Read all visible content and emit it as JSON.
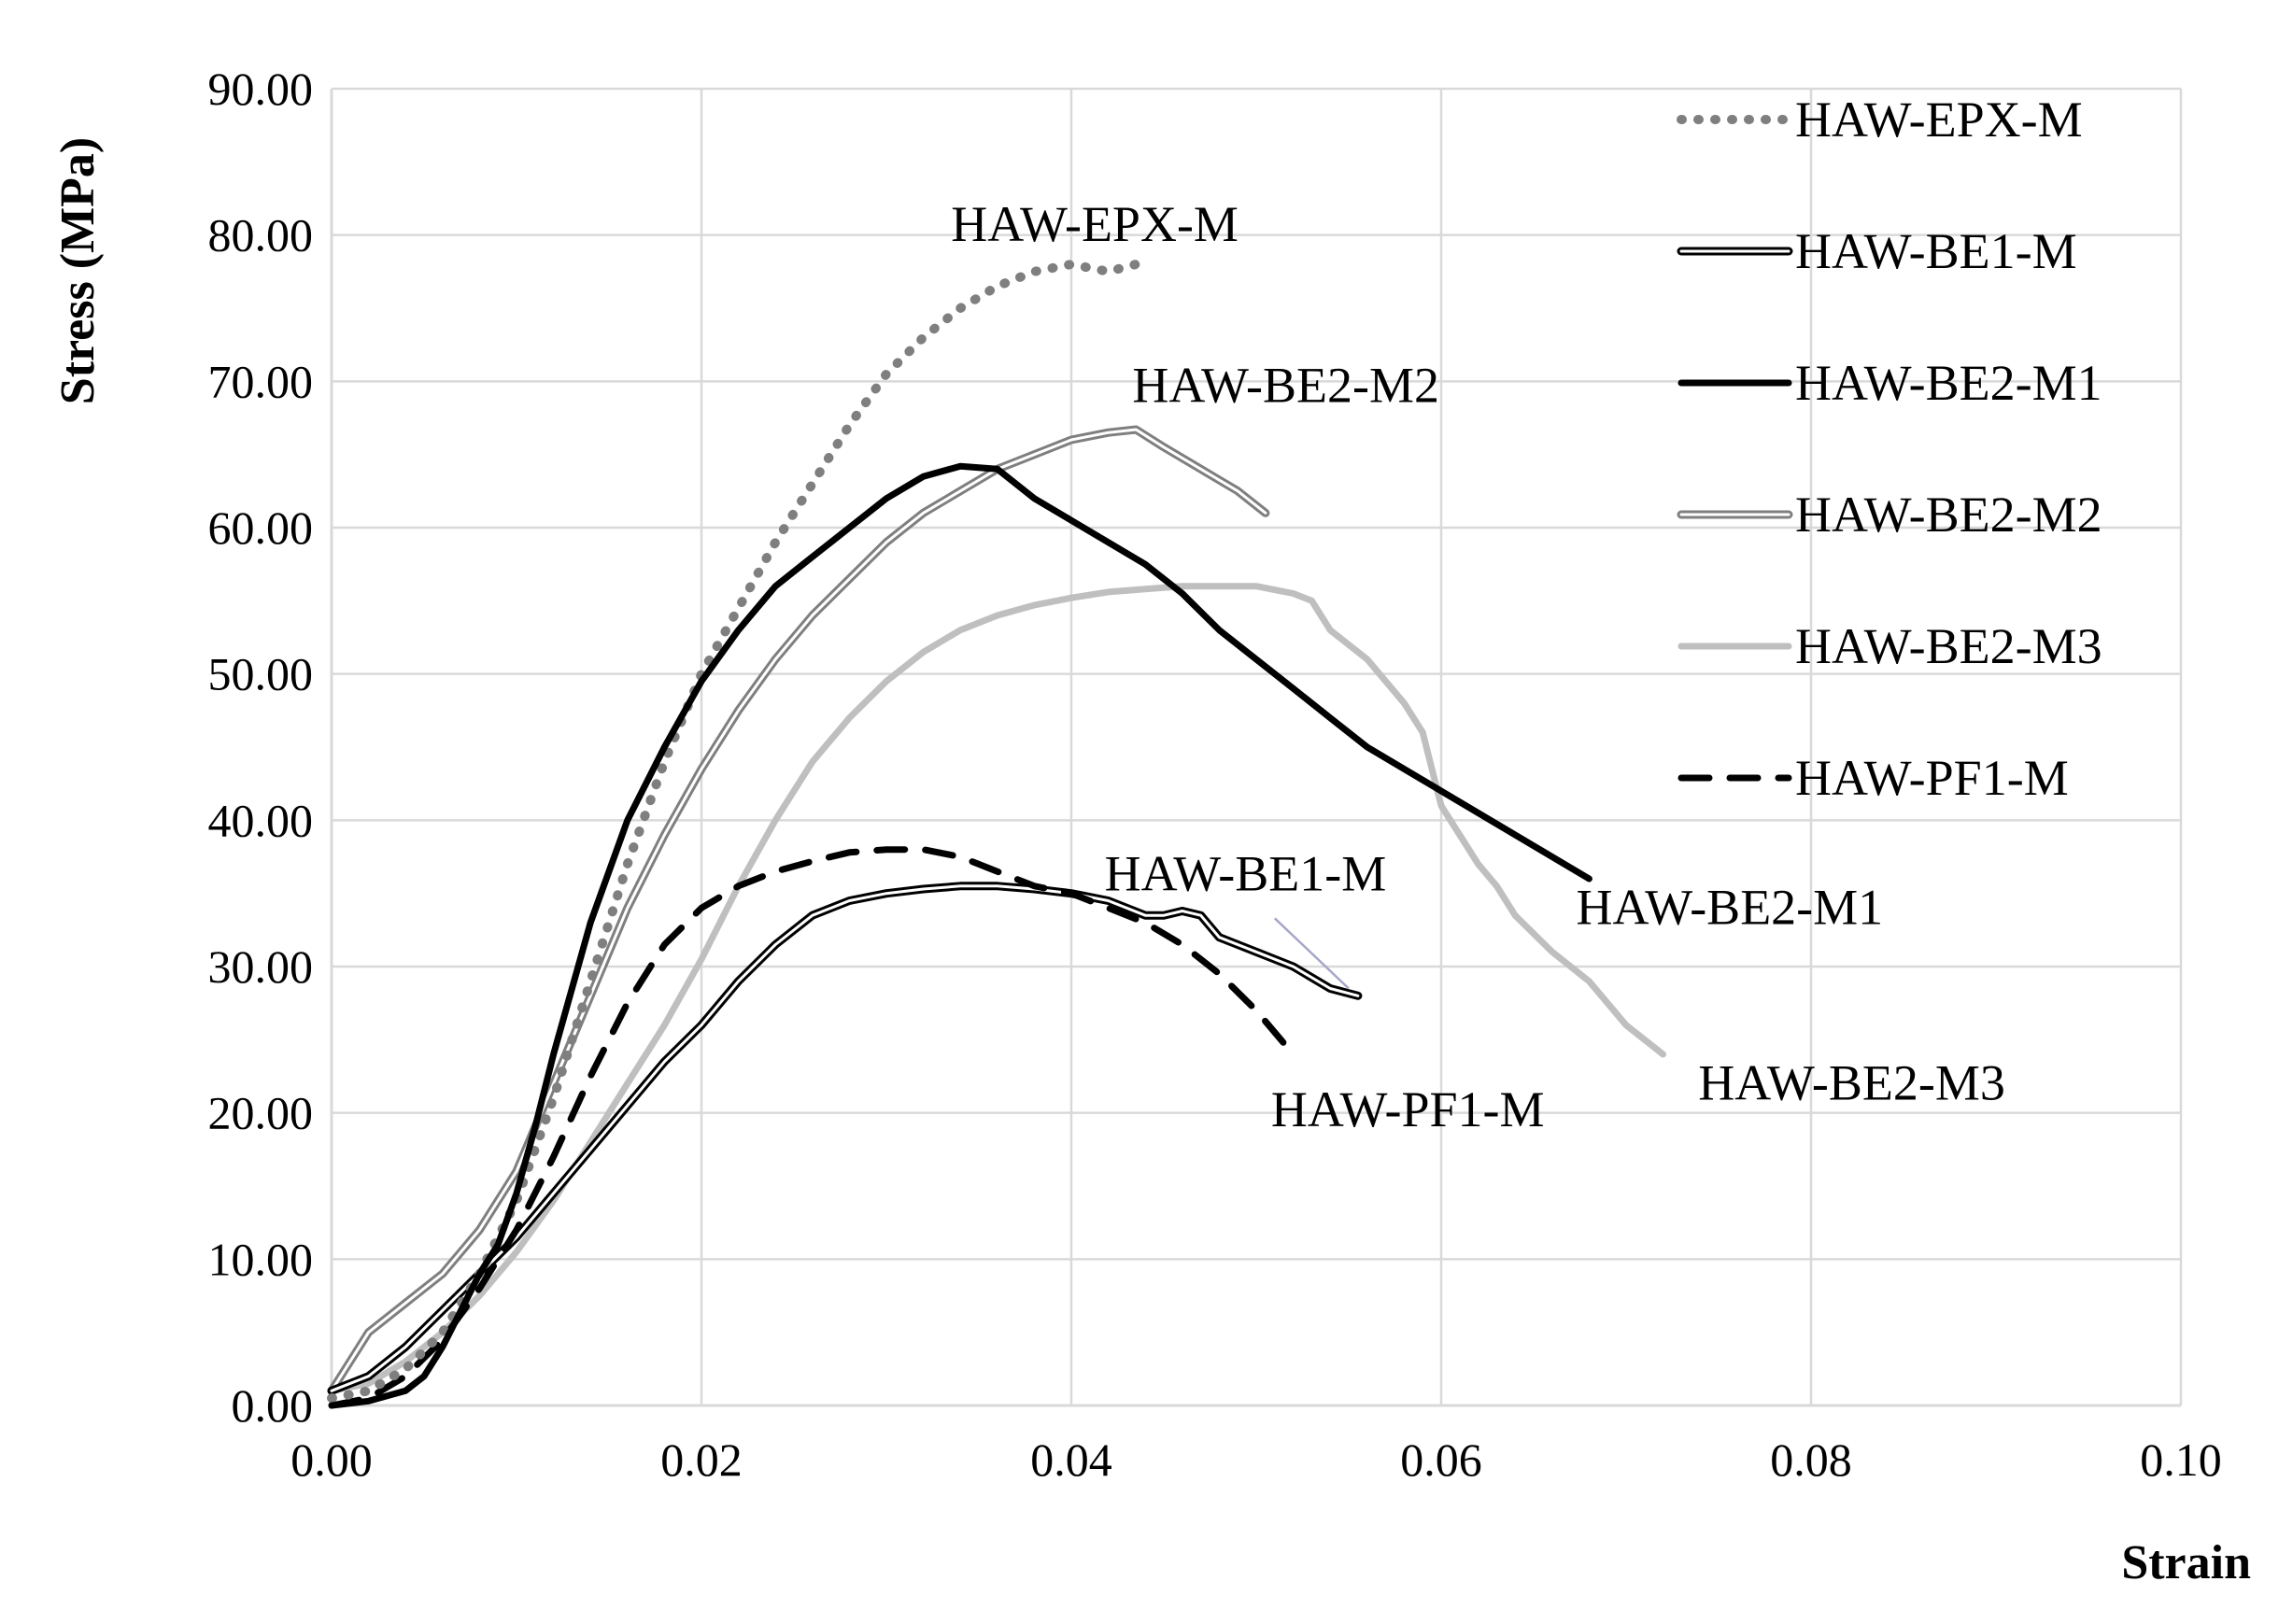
{
  "chart_data": {
    "type": "line",
    "title": "",
    "xlabel": "Strain",
    "ylabel": "Stress  (MPa)",
    "xlim": [
      0,
      0.1
    ],
    "ylim": [
      0,
      90
    ],
    "xticks": [
      "0.00",
      "0.02",
      "0.04",
      "0.06",
      "0.08",
      "0.10"
    ],
    "yticks": [
      "0.00",
      "10.00",
      "20.00",
      "30.00",
      "40.00",
      "50.00",
      "60.00",
      "70.00",
      "80.00",
      "90.00"
    ],
    "grid": true,
    "legend_position": "right",
    "series": [
      {
        "name": "HAW-EPX-M",
        "style": "dotted",
        "color": "#7f7f7f",
        "points": [
          [
            0,
            0.5
          ],
          [
            0.002,
            1
          ],
          [
            0.004,
            2.5
          ],
          [
            0.006,
            5
          ],
          [
            0.008,
            9
          ],
          [
            0.01,
            14
          ],
          [
            0.012,
            21
          ],
          [
            0.014,
            29
          ],
          [
            0.016,
            37
          ],
          [
            0.018,
            44
          ],
          [
            0.02,
            50
          ],
          [
            0.022,
            54.5
          ],
          [
            0.024,
            59
          ],
          [
            0.026,
            63
          ],
          [
            0.028,
            67
          ],
          [
            0.03,
            70.5
          ],
          [
            0.032,
            73
          ],
          [
            0.034,
            75
          ],
          [
            0.036,
            76.5
          ],
          [
            0.038,
            77.5
          ],
          [
            0.04,
            78
          ],
          [
            0.042,
            77.5
          ],
          [
            0.0435,
            78
          ]
        ]
      },
      {
        "name": "HAW-BE1-M",
        "style": "double",
        "color": "#000000",
        "points": [
          [
            0,
            1
          ],
          [
            0.002,
            2
          ],
          [
            0.004,
            4
          ],
          [
            0.006,
            6.5
          ],
          [
            0.008,
            9
          ],
          [
            0.01,
            11.5
          ],
          [
            0.012,
            14.5
          ],
          [
            0.014,
            17.5
          ],
          [
            0.016,
            20.5
          ],
          [
            0.018,
            23.5
          ],
          [
            0.02,
            26
          ],
          [
            0.022,
            29
          ],
          [
            0.024,
            31.5
          ],
          [
            0.026,
            33.5
          ],
          [
            0.028,
            34.5
          ],
          [
            0.03,
            35
          ],
          [
            0.032,
            35.3
          ],
          [
            0.034,
            35.5
          ],
          [
            0.036,
            35.5
          ],
          [
            0.038,
            35.3
          ],
          [
            0.04,
            35
          ],
          [
            0.042,
            34.5
          ],
          [
            0.044,
            33.5
          ],
          [
            0.045,
            33.5
          ],
          [
            0.046,
            33.8
          ],
          [
            0.047,
            33.5
          ],
          [
            0.048,
            32
          ],
          [
            0.05,
            31
          ],
          [
            0.052,
            30
          ],
          [
            0.054,
            28.5
          ],
          [
            0.0555,
            28
          ]
        ]
      },
      {
        "name": "HAW-BE2-M1",
        "style": "solid",
        "color": "#000000",
        "points": [
          [
            0,
            0
          ],
          [
            0.002,
            0.3
          ],
          [
            0.004,
            1
          ],
          [
            0.005,
            2
          ],
          [
            0.006,
            4
          ],
          [
            0.007,
            6.5
          ],
          [
            0.008,
            9
          ],
          [
            0.009,
            11
          ],
          [
            0.01,
            14.5
          ],
          [
            0.011,
            19
          ],
          [
            0.012,
            24
          ],
          [
            0.014,
            33
          ],
          [
            0.016,
            40
          ],
          [
            0.018,
            45
          ],
          [
            0.02,
            49.5
          ],
          [
            0.022,
            53
          ],
          [
            0.024,
            56
          ],
          [
            0.026,
            58
          ],
          [
            0.028,
            60
          ],
          [
            0.03,
            62
          ],
          [
            0.032,
            63.5
          ],
          [
            0.034,
            64.2
          ],
          [
            0.036,
            64
          ],
          [
            0.037,
            63
          ],
          [
            0.038,
            62
          ],
          [
            0.04,
            60.5
          ],
          [
            0.042,
            59
          ],
          [
            0.044,
            57.5
          ],
          [
            0.046,
            55.5
          ],
          [
            0.048,
            53
          ],
          [
            0.05,
            51
          ],
          [
            0.052,
            49
          ],
          [
            0.054,
            47
          ],
          [
            0.056,
            45
          ],
          [
            0.058,
            43.5
          ],
          [
            0.06,
            42
          ],
          [
            0.062,
            40.5
          ],
          [
            0.064,
            39
          ],
          [
            0.066,
            37.5
          ],
          [
            0.068,
            36
          ]
        ]
      },
      {
        "name": "HAW-BE2-M2",
        "style": "double",
        "color": "#7f7f7f",
        "points": [
          [
            0,
            1
          ],
          [
            0.001,
            3
          ],
          [
            0.002,
            5
          ],
          [
            0.004,
            7
          ],
          [
            0.006,
            9
          ],
          [
            0.008,
            12
          ],
          [
            0.01,
            16
          ],
          [
            0.012,
            22
          ],
          [
            0.014,
            28
          ],
          [
            0.016,
            34
          ],
          [
            0.018,
            39
          ],
          [
            0.02,
            43.5
          ],
          [
            0.022,
            47.5
          ],
          [
            0.024,
            51
          ],
          [
            0.026,
            54
          ],
          [
            0.028,
            56.5
          ],
          [
            0.03,
            59
          ],
          [
            0.032,
            61
          ],
          [
            0.034,
            62.5
          ],
          [
            0.036,
            64
          ],
          [
            0.038,
            65
          ],
          [
            0.04,
            66
          ],
          [
            0.042,
            66.5
          ],
          [
            0.0435,
            66.7
          ],
          [
            0.045,
            65.5
          ],
          [
            0.047,
            64
          ],
          [
            0.049,
            62.5
          ],
          [
            0.0505,
            61
          ]
        ]
      },
      {
        "name": "HAW-BE2-M3",
        "style": "solid",
        "color": "#bfbfbf",
        "points": [
          [
            0,
            1
          ],
          [
            0.002,
            1.5
          ],
          [
            0.004,
            3
          ],
          [
            0.006,
            5
          ],
          [
            0.008,
            7.5
          ],
          [
            0.01,
            10.5
          ],
          [
            0.012,
            14
          ],
          [
            0.014,
            18
          ],
          [
            0.016,
            22
          ],
          [
            0.018,
            26
          ],
          [
            0.02,
            30.5
          ],
          [
            0.022,
            35.5
          ],
          [
            0.024,
            40
          ],
          [
            0.026,
            44
          ],
          [
            0.028,
            47
          ],
          [
            0.03,
            49.5
          ],
          [
            0.032,
            51.5
          ],
          [
            0.034,
            53
          ],
          [
            0.036,
            54
          ],
          [
            0.038,
            54.7
          ],
          [
            0.04,
            55.2
          ],
          [
            0.042,
            55.6
          ],
          [
            0.044,
            55.8
          ],
          [
            0.046,
            56
          ],
          [
            0.048,
            56
          ],
          [
            0.05,
            56
          ],
          [
            0.052,
            55.5
          ],
          [
            0.053,
            55
          ],
          [
            0.054,
            53
          ],
          [
            0.056,
            51
          ],
          [
            0.058,
            48
          ],
          [
            0.059,
            46
          ],
          [
            0.06,
            41
          ],
          [
            0.061,
            39
          ],
          [
            0.062,
            37
          ],
          [
            0.063,
            35.5
          ],
          [
            0.064,
            33.5
          ],
          [
            0.066,
            31
          ],
          [
            0.068,
            29
          ],
          [
            0.07,
            26
          ],
          [
            0.072,
            24
          ]
        ]
      },
      {
        "name": "HAW-PF1-M",
        "style": "dashed",
        "color": "#000000",
        "points": [
          [
            0,
            0
          ],
          [
            0.002,
            0.5
          ],
          [
            0.004,
            2
          ],
          [
            0.006,
            4.5
          ],
          [
            0.008,
            8
          ],
          [
            0.01,
            12
          ],
          [
            0.012,
            17
          ],
          [
            0.014,
            22.5
          ],
          [
            0.016,
            27.5
          ],
          [
            0.018,
            31.5
          ],
          [
            0.02,
            34
          ],
          [
            0.022,
            35.5
          ],
          [
            0.024,
            36.5
          ],
          [
            0.026,
            37.2
          ],
          [
            0.028,
            37.8
          ],
          [
            0.03,
            38
          ],
          [
            0.032,
            38
          ],
          [
            0.034,
            37.5
          ],
          [
            0.036,
            36.5
          ],
          [
            0.038,
            35.5
          ],
          [
            0.04,
            35
          ],
          [
            0.042,
            34
          ],
          [
            0.044,
            33
          ],
          [
            0.046,
            31.5
          ],
          [
            0.048,
            29.5
          ],
          [
            0.05,
            27
          ],
          [
            0.052,
            24
          ]
        ]
      }
    ],
    "annotations": [
      {
        "text": "HAW-EPX-M",
        "x": 0.0335,
        "y": 79.6
      },
      {
        "text": "HAW-BE2-M2",
        "x": 0.0433,
        "y": 68.6
      },
      {
        "text": "HAW-BE1-M",
        "x": 0.0418,
        "y": 35.2
      },
      {
        "text": "HAW-BE2-M1",
        "x": 0.0673,
        "y": 32.9
      },
      {
        "text": "HAW-PF1-M",
        "x": 0.0508,
        "y": 19.1
      },
      {
        "text": "HAW-BE2-M3",
        "x": 0.0739,
        "y": 20.9
      }
    ]
  }
}
